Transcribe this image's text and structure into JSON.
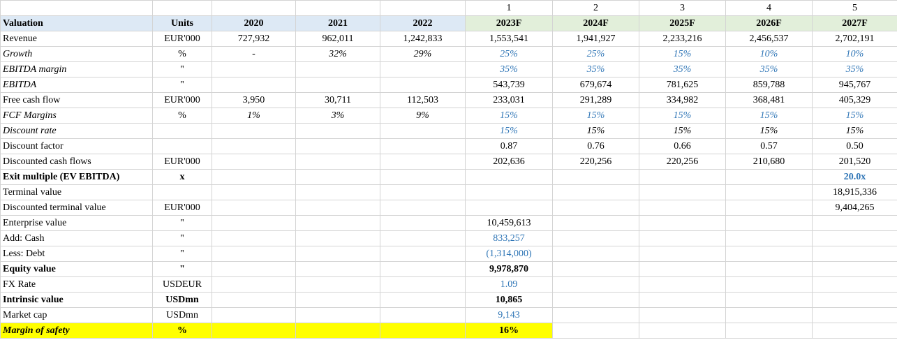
{
  "columns": [
    "",
    "",
    "",
    "",
    "",
    "1",
    "2",
    "3",
    "4",
    "5"
  ],
  "rows": [
    {
      "id": "valuation",
      "cells": [
        "Valuation",
        "Units",
        "2020",
        "2021",
        "2022",
        "2023F",
        "2024F",
        "2025F",
        "2026F",
        "2027F"
      ]
    },
    {
      "id": "revenue",
      "cells": [
        "Revenue",
        "EUR'000",
        "727,932",
        "962,011",
        "1,242,833",
        "1,553,541",
        "1,941,927",
        "2,233,216",
        "2,456,537",
        "2,702,191"
      ]
    },
    {
      "id": "growth",
      "cells": [
        "Growth",
        "%",
        "-",
        "32%",
        "29%",
        "25%",
        "25%",
        "15%",
        "10%",
        "10%"
      ]
    },
    {
      "id": "ebitda-margin",
      "cells": [
        "EBITDA margin",
        "\"",
        "",
        "",
        "",
        "35%",
        "35%",
        "35%",
        "35%",
        "35%"
      ]
    },
    {
      "id": "ebitda",
      "cells": [
        "EBITDA",
        "\"",
        "",
        "",
        "",
        "543,739",
        "679,674",
        "781,625",
        "859,788",
        "945,767"
      ]
    },
    {
      "id": "free-cash-flow",
      "cells": [
        "Free cash flow",
        "EUR'000",
        "3,950",
        "30,711",
        "112,503",
        "233,031",
        "291,289",
        "334,982",
        "368,481",
        "405,329"
      ]
    },
    {
      "id": "fcf-margins",
      "cells": [
        "FCF Margins",
        "%",
        "1%",
        "3%",
        "9%",
        "15%",
        "15%",
        "15%",
        "15%",
        "15%"
      ]
    },
    {
      "id": "discount-rate",
      "cells": [
        "Discount rate",
        "",
        "",
        "",
        "",
        "15%",
        "15%",
        "15%",
        "15%",
        "15%"
      ]
    },
    {
      "id": "discount-factor",
      "cells": [
        "Discount factor",
        "",
        "",
        "",
        "",
        "0.87",
        "0.76",
        "0.66",
        "0.57",
        "0.50"
      ]
    },
    {
      "id": "discounted-cash-flows",
      "cells": [
        "Discounted cash flows",
        "EUR'000",
        "",
        "",
        "",
        "202,636",
        "220,256",
        "220,256",
        "210,680",
        "201,520"
      ]
    },
    {
      "id": "exit-multiple",
      "cells": [
        "Exit multiple (EV EBITDA)",
        "x",
        "",
        "",
        "",
        "",
        "",
        "",
        "",
        "20.0x"
      ]
    },
    {
      "id": "terminal-value",
      "cells": [
        "Terminal value",
        "",
        "",
        "",
        "",
        "",
        "",
        "",
        "",
        "18,915,336"
      ]
    },
    {
      "id": "discounted-terminal-value",
      "cells": [
        "Discounted terminal value",
        "EUR'000",
        "",
        "",
        "",
        "",
        "",
        "",
        "",
        "9,404,265"
      ]
    },
    {
      "id": "enterprise-value",
      "cells": [
        "Enterprise value",
        "\"",
        "",
        "",
        "",
        "10,459,613",
        "",
        "",
        "",
        ""
      ]
    },
    {
      "id": "add-cash",
      "cells": [
        "Add: Cash",
        "\"",
        "",
        "",
        "",
        "833,257",
        "",
        "",
        "",
        ""
      ]
    },
    {
      "id": "less-debt",
      "cells": [
        "Less: Debt",
        "\"",
        "",
        "",
        "",
        "(1,314,000)",
        "",
        "",
        "",
        ""
      ]
    },
    {
      "id": "equity-value",
      "cells": [
        "Equity value",
        "\"",
        "",
        "",
        "",
        "9,978,870",
        "",
        "",
        "",
        ""
      ]
    },
    {
      "id": "fx-rate",
      "cells": [
        "FX Rate",
        "USDEUR",
        "",
        "",
        "",
        "1.09",
        "",
        "",
        "",
        ""
      ]
    },
    {
      "id": "intrinsic-value",
      "cells": [
        "Intrinsic value",
        "USDmn",
        "",
        "",
        "",
        "10,865",
        "",
        "",
        "",
        ""
      ]
    },
    {
      "id": "market-cap",
      "cells": [
        "Market cap",
        "USDmn",
        "",
        "",
        "",
        "9,143",
        "",
        "",
        "",
        ""
      ]
    },
    {
      "id": "margin-of-safety",
      "cells": [
        "Margin of safety",
        "%",
        "",
        "",
        "",
        "16%",
        "",
        "",
        "",
        ""
      ]
    }
  ],
  "colors": {
    "header_bg": "#dde9f5",
    "forecast_header_bg": "#e2efda",
    "input_blue": "#2e75b6",
    "highlight": "#ffff00"
  }
}
